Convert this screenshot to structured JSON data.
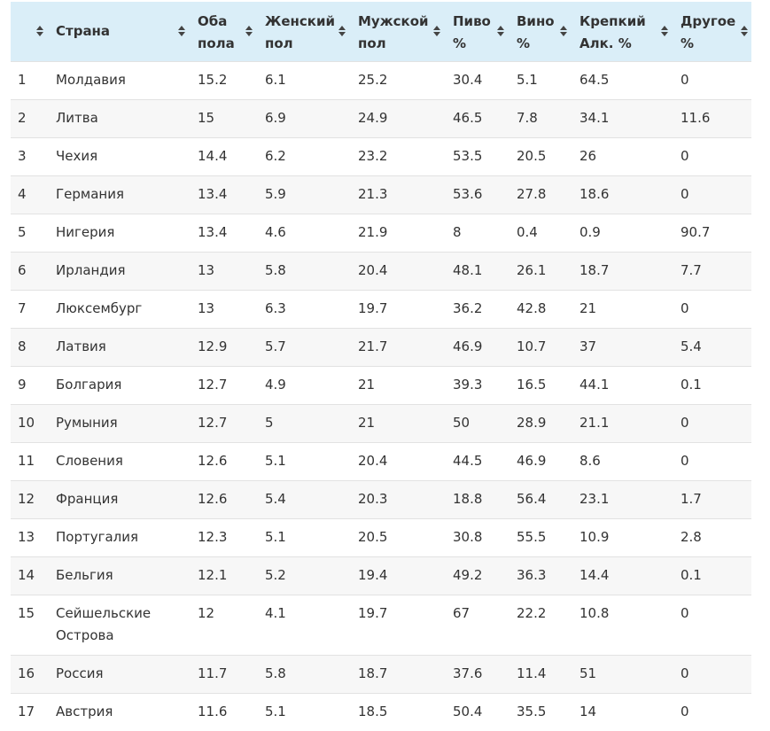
{
  "table": {
    "headers": [
      "",
      "Страна",
      "Оба пола",
      "Женский пол",
      "Мужской пол",
      "Пиво %",
      "Вино %",
      "Крепкий Алк. %",
      "Другое %"
    ],
    "rows": [
      [
        "1",
        "Молдавия",
        "15.2",
        "6.1",
        "25.2",
        "30.4",
        "5.1",
        "64.5",
        "0"
      ],
      [
        "2",
        "Литва",
        "15",
        "6.9",
        "24.9",
        "46.5",
        "7.8",
        "34.1",
        "11.6"
      ],
      [
        "3",
        "Чехия",
        "14.4",
        "6.2",
        "23.2",
        "53.5",
        "20.5",
        "26",
        "0"
      ],
      [
        "4",
        "Германия",
        "13.4",
        "5.9",
        "21.3",
        "53.6",
        "27.8",
        "18.6",
        "0"
      ],
      [
        "5",
        "Нигерия",
        "13.4",
        "4.6",
        "21.9",
        "8",
        "0.4",
        "0.9",
        "90.7"
      ],
      [
        "6",
        "Ирландия",
        "13",
        "5.8",
        "20.4",
        "48.1",
        "26.1",
        "18.7",
        "7.7"
      ],
      [
        "7",
        "Люксембург",
        "13",
        "6.3",
        "19.7",
        "36.2",
        "42.8",
        "21",
        "0"
      ],
      [
        "8",
        "Латвия",
        "12.9",
        "5.7",
        "21.7",
        "46.9",
        "10.7",
        "37",
        "5.4"
      ],
      [
        "9",
        "Болгария",
        "12.7",
        "4.9",
        "21",
        "39.3",
        "16.5",
        "44.1",
        "0.1"
      ],
      [
        "10",
        "Румыния",
        "12.7",
        "5",
        "21",
        "50",
        "28.9",
        "21.1",
        "0"
      ],
      [
        "11",
        "Словения",
        "12.6",
        "5.1",
        "20.4",
        "44.5",
        "46.9",
        "8.6",
        "0"
      ],
      [
        "12",
        "Франция",
        "12.6",
        "5.4",
        "20.3",
        "18.8",
        "56.4",
        "23.1",
        "1.7"
      ],
      [
        "13",
        "Португалия",
        "12.3",
        "5.1",
        "20.5",
        "30.8",
        "55.5",
        "10.9",
        "2.8"
      ],
      [
        "14",
        "Бельгия",
        "12.1",
        "5.2",
        "19.4",
        "49.2",
        "36.3",
        "14.4",
        "0.1"
      ],
      [
        "15",
        "Сейшельские Острова",
        "12",
        "4.1",
        "19.7",
        "67",
        "22.2",
        "10.8",
        "0"
      ],
      [
        "16",
        "Россия",
        "11.7",
        "5.8",
        "18.7",
        "37.6",
        "11.4",
        "51",
        "0"
      ],
      [
        "17",
        "Австрия",
        "11.6",
        "5.1",
        "18.5",
        "50.4",
        "35.5",
        "14",
        "0"
      ]
    ]
  },
  "colors": {
    "header_bg": "#daeef8",
    "stripe_bg": "#f7f7f7",
    "row_border": "#e2e2e2",
    "text": "#333333"
  },
  "icons": {
    "sort": "sort-arrows-icon"
  }
}
